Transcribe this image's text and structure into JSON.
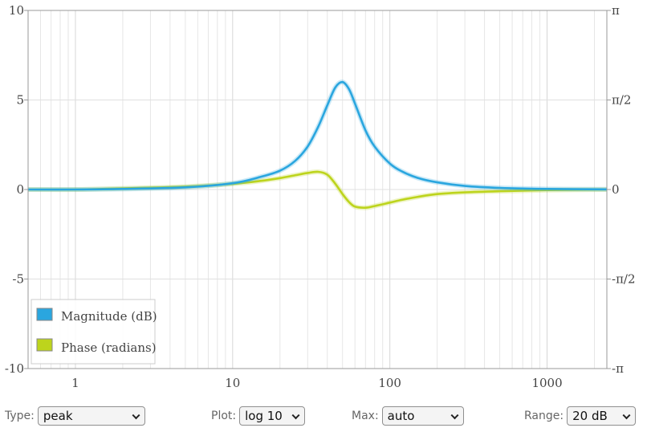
{
  "chart_data": {
    "type": "line",
    "xscale": "log",
    "xlim": [
      0.5,
      2400
    ],
    "ylim": [
      -10,
      10
    ],
    "y2lim": [
      -3.14159,
      3.14159
    ],
    "x_ticks": [
      1,
      10,
      100,
      1000
    ],
    "x_tick_labels": [
      "1",
      "10",
      "100",
      "1000"
    ],
    "y_ticks": [
      10,
      5,
      0,
      -5,
      -10
    ],
    "y_tick_labels": [
      "10",
      "5",
      "0",
      "-5",
      "-10"
    ],
    "y2_tick_labels": [
      "π",
      "π/2",
      "0",
      "-π/2",
      "-π"
    ],
    "grid": true,
    "legend_position": "bottom-left",
    "colors": {
      "magnitude": "#2aa6df",
      "phase": "#bdd41c"
    },
    "series": [
      {
        "name": "Magnitude (dB)",
        "axis": "left",
        "x": [
          0.5,
          1,
          2,
          5,
          10,
          15,
          20,
          25,
          30,
          35,
          40,
          45,
          50,
          55,
          60,
          70,
          80,
          100,
          120,
          150,
          200,
          300,
          500,
          1000,
          2400
        ],
        "y": [
          0.0,
          0.0,
          0.03,
          0.12,
          0.35,
          0.7,
          1.05,
          1.6,
          2.4,
          3.5,
          4.7,
          5.7,
          6.0,
          5.6,
          4.8,
          3.3,
          2.4,
          1.45,
          1.0,
          0.65,
          0.4,
          0.2,
          0.09,
          0.03,
          0.01
        ]
      },
      {
        "name": "Phase (radians)",
        "axis": "right",
        "x": [
          0.5,
          1,
          2,
          5,
          10,
          15,
          20,
          25,
          30,
          35,
          40,
          45,
          50,
          55,
          60,
          70,
          80,
          100,
          120,
          150,
          200,
          300,
          500,
          1000,
          2400
        ],
        "y": [
          0.0,
          0.0,
          0.02,
          0.05,
          0.1,
          0.15,
          0.2,
          0.25,
          0.29,
          0.31,
          0.26,
          0.1,
          -0.08,
          -0.22,
          -0.3,
          -0.32,
          -0.29,
          -0.23,
          -0.18,
          -0.13,
          -0.08,
          -0.05,
          -0.03,
          -0.01,
          0.0
        ]
      }
    ]
  },
  "controls": {
    "type": {
      "label": "Type:",
      "value": "peak"
    },
    "plot": {
      "label": "Plot:",
      "value": "log 10"
    },
    "max": {
      "label": "Max:",
      "value": "auto"
    },
    "range": {
      "label": "Range:",
      "value": "20 dB"
    }
  }
}
